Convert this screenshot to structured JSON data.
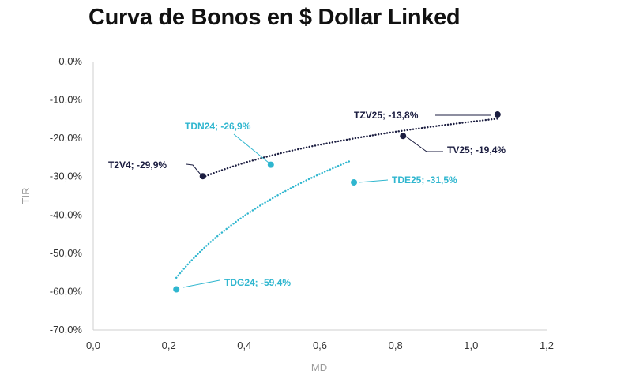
{
  "title": "Curva de Bonos en $ Dollar Linked",
  "colors": {
    "dark": "#1b1d40",
    "light": "#2fb6cf",
    "axis": "#cfcfcf"
  },
  "chart_data": {
    "type": "scatter",
    "title": "Curva de Bonos en $ Dollar Linked",
    "xlabel": "MD",
    "ylabel": "TIR",
    "xlim": [
      0,
      1.2
    ],
    "ylim": [
      -70,
      0
    ],
    "x_ticks": [
      "0,0",
      "0,2",
      "0,4",
      "0,6",
      "0,8",
      "1,0",
      "1,2"
    ],
    "y_ticks": [
      "0,0%",
      "-10,0%",
      "-20,0%",
      "-30,0%",
      "-40,0%",
      "-50,0%",
      "-60,0%",
      "-70,0%"
    ],
    "grid": false,
    "legend": "none",
    "points": [
      {
        "label": "TZV25; -13,8%",
        "series": "dark",
        "x": 1.07,
        "y": -13.8
      },
      {
        "label": "TV25; -19,4%",
        "series": "dark",
        "x": 0.82,
        "y": -19.4
      },
      {
        "label": "T2V4; -29,9%",
        "series": "dark",
        "x": 0.29,
        "y": -29.9
      },
      {
        "label": "TDN24; -26,9%",
        "series": "light",
        "x": 0.47,
        "y": -26.9
      },
      {
        "label": "TDE25; -31,5%",
        "series": "light",
        "x": 0.69,
        "y": -31.5
      },
      {
        "label": "TDG24; -59,4%",
        "series": "light",
        "x": 0.22,
        "y": -59.4
      }
    ],
    "trendlines": [
      {
        "series": "dark",
        "style": "dotted",
        "x_range": [
          0.29,
          1.07
        ]
      },
      {
        "series": "light",
        "style": "dotted",
        "x_range": [
          0.22,
          0.68
        ]
      }
    ]
  }
}
